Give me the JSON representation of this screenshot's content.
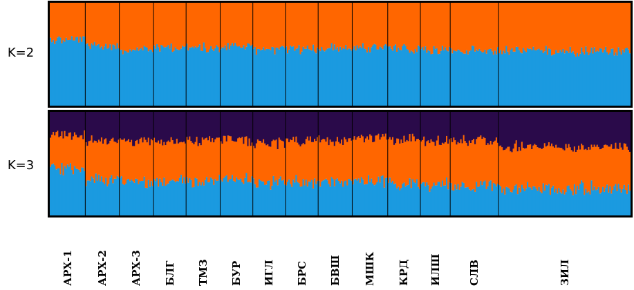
{
  "chart_data": {
    "type": "bar",
    "subtype": "stacked-admixture (STRUCTURE plot)",
    "panels": [
      {
        "label": "K=2",
        "clusters": [
          {
            "color": "#1b9ae0",
            "order": "bottom"
          },
          {
            "color": "#ff6600",
            "order": "top"
          }
        ],
        "mean_proportions_by_population": {
          "АРХ-1": [
            0.64,
            0.36
          ],
          "АРХ-2": [
            0.58,
            0.42
          ],
          "АРХ-3": [
            0.55,
            0.45
          ],
          "БЛГ": [
            0.57,
            0.43
          ],
          "ТМЗ": [
            0.56,
            0.44
          ],
          "БУР": [
            0.58,
            0.42
          ],
          "ИГЛ": [
            0.55,
            0.45
          ],
          "БРС": [
            0.55,
            0.45
          ],
          "БВШ": [
            0.56,
            0.44
          ],
          "МШК": [
            0.56,
            0.44
          ],
          "КРД": [
            0.55,
            0.45
          ],
          "ИЛШ": [
            0.54,
            0.46
          ],
          "СЛВ": [
            0.53,
            0.47
          ],
          "ЗИЛ": [
            0.53,
            0.47
          ]
        }
      },
      {
        "label": "K=3",
        "clusters": [
          {
            "color": "#1b9ae0",
            "order": "bottom"
          },
          {
            "color": "#ff6600",
            "order": "middle"
          },
          {
            "color": "#2a0a4a",
            "order": "top"
          }
        ],
        "mean_proportions_by_population": {
          "АРХ-1": [
            0.45,
            0.33,
            0.22
          ],
          "АРХ-2": [
            0.35,
            0.37,
            0.28
          ],
          "АРХ-3": [
            0.33,
            0.39,
            0.28
          ],
          "БЛГ": [
            0.34,
            0.38,
            0.28
          ],
          "ТМЗ": [
            0.33,
            0.4,
            0.27
          ],
          "БУР": [
            0.35,
            0.38,
            0.27
          ],
          "ИГЛ": [
            0.32,
            0.38,
            0.3
          ],
          "БРС": [
            0.32,
            0.41,
            0.27
          ],
          "БВШ": [
            0.33,
            0.4,
            0.27
          ],
          "МШК": [
            0.33,
            0.42,
            0.25
          ],
          "КРД": [
            0.31,
            0.42,
            0.27
          ],
          "ИЛШ": [
            0.3,
            0.42,
            0.28
          ],
          "СЛВ": [
            0.29,
            0.43,
            0.28
          ],
          "ЗИЛ": [
            0.26,
            0.4,
            0.34
          ]
        }
      }
    ],
    "populations": [
      "АРХ-1",
      "АРХ-2",
      "АРХ-3",
      "БЛГ",
      "ТМЗ",
      "БУР",
      "ИГЛ",
      "БРС",
      "БВШ",
      "МШК",
      "КРД",
      "ИЛШ",
      "СЛВ",
      "ЗИЛ"
    ],
    "population_sample_counts": [
      25,
      24,
      24,
      23,
      24,
      23,
      23,
      23,
      24,
      25,
      23,
      21,
      34,
      93
    ],
    "ylim": [
      0,
      1
    ],
    "legend": "none",
    "grid": false
  }
}
